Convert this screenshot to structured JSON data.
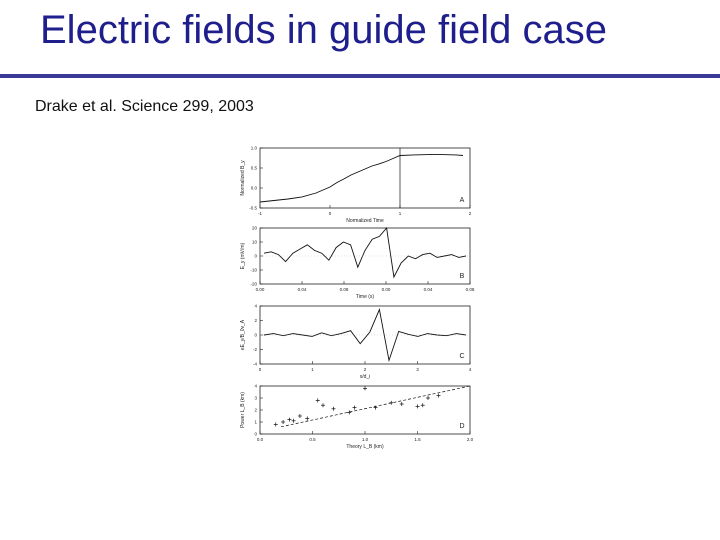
{
  "slide": {
    "title": "Electric fields in guide field case",
    "citation": "Drake et al. Science 299, 2003"
  },
  "colors": {
    "title": "#1e1e8c",
    "rule": "#3a3a96"
  },
  "chart_data": [
    {
      "type": "line",
      "panel_label": "A",
      "ylabel": "Normalized B_y",
      "xlabel": "Normalized Time",
      "xticks": [
        "-1",
        "0",
        "1",
        "2"
      ],
      "yticks": [
        "-0.5",
        "0.0",
        "0.5",
        "1.0"
      ],
      "xlim": [
        -1,
        2
      ],
      "ylim": [
        -0.75,
        1.25
      ],
      "annotation": "vertical line at x = 1",
      "x": [
        -1.0,
        -0.8,
        -0.6,
        -0.4,
        -0.2,
        -0.1,
        0.0,
        0.1,
        0.2,
        0.3,
        0.4,
        0.5,
        0.6,
        0.7,
        0.8,
        0.9,
        1.0,
        1.2,
        1.4,
        1.6,
        1.8,
        1.9
      ],
      "y": [
        -0.55,
        -0.5,
        -0.45,
        -0.38,
        -0.25,
        -0.15,
        -0.05,
        0.1,
        0.22,
        0.35,
        0.45,
        0.55,
        0.65,
        0.72,
        0.8,
        0.9,
        1.0,
        1.02,
        1.03,
        1.03,
        1.02,
        1.0
      ]
    },
    {
      "type": "line",
      "panel_label": "B",
      "ylabel": "E_y (mV/m)",
      "xlabel": "Time (s)",
      "xticks": [
        "0.00",
        "0.04",
        "0.08",
        "0.00",
        "0.04",
        "0.08"
      ],
      "yticks": [
        "-20",
        "-10",
        "0",
        "10",
        "20"
      ],
      "ylim": [
        -20,
        20
      ],
      "y": [
        2,
        3,
        1,
        -4,
        2,
        5,
        8,
        4,
        2,
        -3,
        6,
        10,
        8,
        -8,
        4,
        12,
        14,
        20,
        -15,
        -5,
        0,
        -2,
        1,
        2,
        -1,
        0,
        1,
        -1,
        0
      ]
    },
    {
      "type": "line",
      "panel_label": "C",
      "ylabel": "eE_y/B_0v_A",
      "xlabel": "x/d_i",
      "xticks": [
        "0",
        "1",
        "2",
        "3",
        "4"
      ],
      "yticks": [
        "-4",
        "-2",
        "0",
        "2",
        "4"
      ],
      "xlim": [
        0,
        4.5
      ],
      "ylim": [
        -4,
        4
      ],
      "y": [
        0,
        0.2,
        -0.1,
        0.2,
        0,
        -0.2,
        0.3,
        -0.1,
        0.2,
        0.6,
        -1.2,
        0.4,
        3.5,
        -3.5,
        0.5,
        0.1,
        -0.2,
        0.2,
        0,
        -0.1,
        0.2,
        0
      ]
    },
    {
      "type": "scatter",
      "panel_label": "D",
      "ylabel": "Power L_B (km)",
      "xlabel": "Theory L_B (km)",
      "xticks": [
        "0.0",
        "0.5",
        "1.0",
        "1.5",
        "2.0"
      ],
      "yticks": [
        "0",
        "1",
        "2",
        "3",
        "4"
      ],
      "xlim": [
        0,
        2
      ],
      "ylim": [
        0,
        4
      ],
      "x": [
        0.15,
        0.22,
        0.28,
        0.32,
        0.38,
        0.45,
        0.55,
        0.6,
        0.7,
        0.85,
        0.9,
        1.0,
        1.1,
        1.25,
        1.35,
        1.5,
        1.55,
        1.6,
        1.7
      ],
      "y": [
        0.8,
        1.0,
        1.2,
        1.1,
        1.5,
        1.3,
        2.8,
        2.4,
        2.1,
        1.8,
        2.2,
        3.8,
        2.2,
        2.6,
        2.5,
        2.3,
        2.4,
        3.0,
        3.2
      ],
      "fit_line": {
        "x": [
          0.2,
          2.0
        ],
        "y": [
          0.6,
          4.0
        ]
      }
    }
  ]
}
